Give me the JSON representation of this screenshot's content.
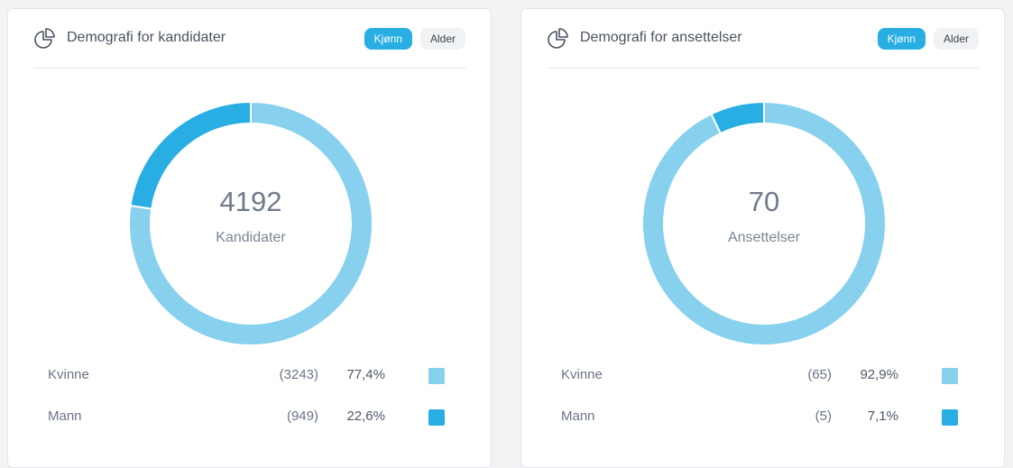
{
  "colors": {
    "light": "#87d0ee",
    "dark": "#29aee3"
  },
  "cards": [
    {
      "title": "Demografi for kandidater",
      "icon": "pie-chart-icon",
      "tabs": [
        {
          "label": "Kjønn",
          "active": true
        },
        {
          "label": "Alder",
          "active": false
        }
      ],
      "center_value": "4192",
      "center_label": "Kandidater",
      "legend": [
        {
          "label": "Kvinne",
          "count": "(3243)",
          "percent": "77,4%",
          "color": "#87d0ee"
        },
        {
          "label": "Mann",
          "count": "(949)",
          "percent": "22,6%",
          "color": "#29aee3"
        }
      ],
      "chart_data": {
        "type": "pie",
        "categories": [
          "Kvinne",
          "Mann"
        ],
        "values": [
          3243,
          949
        ]
      }
    },
    {
      "title": "Demografi for ansettelser",
      "icon": "pie-chart-icon",
      "tabs": [
        {
          "label": "Kjønn",
          "active": true
        },
        {
          "label": "Alder",
          "active": false
        }
      ],
      "center_value": "70",
      "center_label": "Ansettelser",
      "legend": [
        {
          "label": "Kvinne",
          "count": "(65)",
          "percent": "92,9%",
          "color": "#87d0ee"
        },
        {
          "label": "Mann",
          "count": "(5)",
          "percent": "7,1%",
          "color": "#29aee3"
        }
      ],
      "chart_data": {
        "type": "pie",
        "categories": [
          "Kvinne",
          "Mann"
        ],
        "values": [
          65,
          5
        ]
      }
    }
  ]
}
